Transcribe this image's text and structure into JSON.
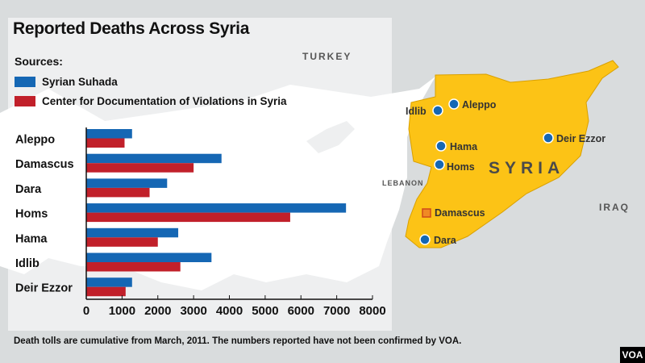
{
  "title": "Reported Deaths Across Syria",
  "sources_label": "Sources:",
  "footnote": "Death tolls are cumulative from March, 2011.  The numbers reported have not been confirmed by VOA.",
  "logo": "VOA",
  "map": {
    "countries": {
      "turkey": "TURKEY",
      "lebanon": "LEBANON",
      "iraq": "IRAQ",
      "syria": "SYRIA"
    },
    "cities": {
      "idlib": "Idlib",
      "aleppo": "Aleppo",
      "hama": "Hama",
      "homs": "Homs",
      "deir_ezzor": "Deir Ezzor",
      "damascus": "Damascus",
      "dara": "Dara"
    },
    "colors": {
      "syria": "#fcc316",
      "city_dot": "#1567b4",
      "capital": "#f08a24"
    }
  },
  "chart_data": {
    "type": "bar",
    "orientation": "horizontal",
    "title": "Reported Deaths Across Syria",
    "categories": [
      "Aleppo",
      "Damascus",
      "Dara",
      "Homs",
      "Hama",
      "Idlib",
      "Deir Ezzor"
    ],
    "series": [
      {
        "name": "Syrian Suhada",
        "color": "#1567b4",
        "values": [
          1280,
          3780,
          2260,
          7260,
          2570,
          3500,
          1280
        ]
      },
      {
        "name": "Center for Documentation of Violations in Syria",
        "color": "#c1202a",
        "values": [
          1070,
          3000,
          1770,
          5700,
          2000,
          2630,
          1100
        ]
      }
    ],
    "xlim": [
      0,
      8000
    ],
    "xticks": [
      "0",
      "1000",
      "2000",
      "3000",
      "4000",
      "5000",
      "6000",
      "7000",
      "8000"
    ],
    "legend": "top-left",
    "grid": false
  }
}
